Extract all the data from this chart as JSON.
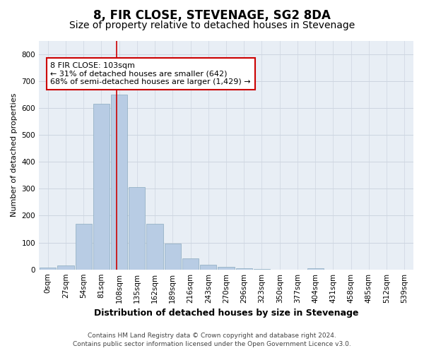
{
  "title": "8, FIR CLOSE, STEVENAGE, SG2 8DA",
  "subtitle": "Size of property relative to detached houses in Stevenage",
  "xlabel": "Distribution of detached houses by size in Stevenage",
  "ylabel": "Number of detached properties",
  "bar_labels": [
    "0sqm",
    "27sqm",
    "54sqm",
    "81sqm",
    "108sqm",
    "135sqm",
    "162sqm",
    "189sqm",
    "216sqm",
    "243sqm",
    "270sqm",
    "296sqm",
    "323sqm",
    "350sqm",
    "377sqm",
    "404sqm",
    "431sqm",
    "458sqm",
    "485sqm",
    "512sqm",
    "539sqm"
  ],
  "bar_values": [
    8,
    15,
    170,
    615,
    650,
    305,
    170,
    97,
    42,
    17,
    10,
    5,
    3,
    0,
    0,
    5,
    0,
    0,
    0,
    0,
    0
  ],
  "bar_color": "#b8cce4",
  "bar_edgecolor": "#8baabf",
  "property_line_color": "#cc0000",
  "property_line_x": 3.85,
  "annotation_text": "8 FIR CLOSE: 103sqm\n← 31% of detached houses are smaller (642)\n68% of semi-detached houses are larger (1,429) →",
  "annotation_box_facecolor": "#ffffff",
  "annotation_box_edgecolor": "#cc0000",
  "ylim": [
    0,
    850
  ],
  "yticks": [
    0,
    100,
    200,
    300,
    400,
    500,
    600,
    700,
    800
  ],
  "grid_color": "#cdd5e0",
  "background_color": "#e8eef5",
  "footer_line1": "Contains HM Land Registry data © Crown copyright and database right 2024.",
  "footer_line2": "Contains public sector information licensed under the Open Government Licence v3.0.",
  "title_fontsize": 12,
  "subtitle_fontsize": 10,
  "xlabel_fontsize": 9,
  "ylabel_fontsize": 8,
  "tick_fontsize": 7.5,
  "annotation_fontsize": 8,
  "footer_fontsize": 6.5
}
